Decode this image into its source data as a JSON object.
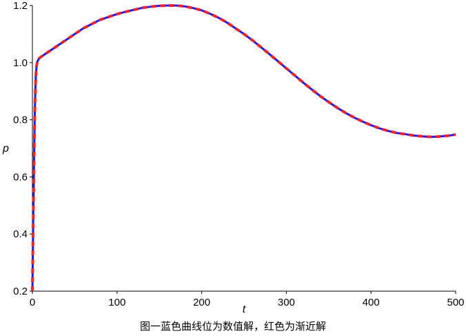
{
  "caption": "图一蓝色曲线位为数值解，红色为渐近解",
  "chart_data": {
    "type": "line",
    "xlabel": "t",
    "ylabel": "p",
    "xlim": [
      0,
      500
    ],
    "ylim": [
      0.2,
      1.2
    ],
    "x_ticks": [
      0,
      100,
      200,
      300,
      400,
      500
    ],
    "x_tick_labels": [
      "0",
      "100",
      "200",
      "300",
      "400",
      "500"
    ],
    "y_ticks": [
      0.2,
      0.4,
      0.6,
      0.8,
      1.0,
      1.2
    ],
    "y_tick_labels": [
      "0.2",
      "0.4",
      "0.6",
      "0.8",
      "1.0",
      "1.2"
    ],
    "grid": false,
    "series": [
      {
        "style": "solid",
        "color": "#1a1aff",
        "x": [
          0,
          1,
          2,
          3,
          4,
          5,
          6,
          8,
          10,
          15,
          20,
          30,
          40,
          50,
          60,
          70,
          80,
          90,
          100,
          110,
          120,
          130,
          140,
          150,
          160,
          170,
          180,
          190,
          200,
          210,
          220,
          230,
          240,
          250,
          260,
          270,
          280,
          290,
          300,
          310,
          320,
          330,
          340,
          350,
          360,
          370,
          380,
          390,
          400,
          410,
          420,
          430,
          440,
          450,
          460,
          470,
          480,
          490,
          500
        ],
        "values": [
          0.2,
          0.45,
          0.68,
          0.85,
          0.95,
          0.99,
          1.005,
          1.015,
          1.02,
          1.03,
          1.04,
          1.06,
          1.08,
          1.1,
          1.12,
          1.135,
          1.15,
          1.16,
          1.17,
          1.178,
          1.185,
          1.192,
          1.196,
          1.199,
          1.2,
          1.2,
          1.197,
          1.191,
          1.183,
          1.171,
          1.157,
          1.14,
          1.12,
          1.1,
          1.078,
          1.054,
          1.03,
          1.005,
          0.98,
          0.955,
          0.93,
          0.906,
          0.883,
          0.862,
          0.842,
          0.824,
          0.808,
          0.794,
          0.781,
          0.77,
          0.761,
          0.754,
          0.75,
          0.745,
          0.742,
          0.74,
          0.741,
          0.744,
          0.748
        ]
      },
      {
        "style": "dashed",
        "color": "#ff2020",
        "x": [
          0,
          1,
          2,
          3,
          4,
          5,
          6,
          8,
          10,
          15,
          20,
          30,
          40,
          50,
          60,
          70,
          80,
          90,
          100,
          110,
          120,
          130,
          140,
          150,
          160,
          170,
          180,
          190,
          200,
          210,
          220,
          230,
          240,
          250,
          260,
          270,
          280,
          290,
          300,
          310,
          320,
          330,
          340,
          350,
          360,
          370,
          380,
          390,
          400,
          410,
          420,
          430,
          440,
          450,
          460,
          470,
          480,
          490,
          500
        ],
        "values": [
          0.2,
          0.45,
          0.68,
          0.85,
          0.95,
          0.99,
          1.005,
          1.015,
          1.02,
          1.03,
          1.04,
          1.06,
          1.08,
          1.1,
          1.12,
          1.135,
          1.15,
          1.16,
          1.17,
          1.178,
          1.185,
          1.192,
          1.196,
          1.199,
          1.2,
          1.2,
          1.197,
          1.191,
          1.183,
          1.171,
          1.157,
          1.14,
          1.12,
          1.1,
          1.078,
          1.054,
          1.03,
          1.005,
          0.98,
          0.955,
          0.93,
          0.906,
          0.883,
          0.862,
          0.842,
          0.824,
          0.808,
          0.794,
          0.781,
          0.77,
          0.761,
          0.754,
          0.75,
          0.745,
          0.742,
          0.74,
          0.741,
          0.744,
          0.748
        ]
      }
    ]
  }
}
